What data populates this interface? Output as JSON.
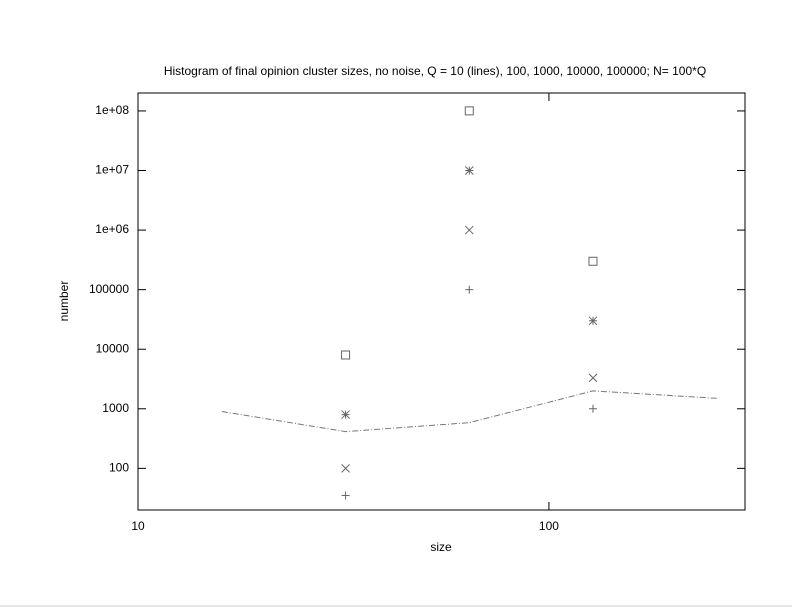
{
  "chart_data": {
    "type": "scatter",
    "title": "Histogram of final opinion cluster sizes, no noise, Q = 10 (lines), 100, 1000, 10000, 100000; N= 100*Q",
    "xlabel": "size",
    "ylabel": "number",
    "xlog": true,
    "ylog": true,
    "xlim": [
      10,
      300
    ],
    "ylim": [
      20,
      200000000
    ],
    "xticks": [
      10,
      100
    ],
    "yticks": [
      100,
      1000,
      10000,
      100000,
      {
        "value": 1000000,
        "label": "1e+06"
      },
      {
        "value": 10000000,
        "label": "1e+07"
      },
      {
        "value": 100000000,
        "label": "1e+08"
      }
    ],
    "series": [
      {
        "style": "line",
        "color": "#777777",
        "x": [
          16,
          32,
          64,
          128,
          256
        ],
        "values": [
          900,
          414,
          585,
          2000,
          1500
        ]
      },
      {
        "style": "points",
        "marker": "plus",
        "color": "#666666",
        "x": [
          32,
          64,
          128
        ],
        "values": [
          35,
          100000,
          1000
        ]
      },
      {
        "style": "points",
        "marker": "cross",
        "color": "#666666",
        "x": [
          32,
          64,
          128
        ],
        "values": [
          100,
          1000000,
          3300
        ]
      },
      {
        "style": "points",
        "marker": "star",
        "color": "#666666",
        "x": [
          32,
          64,
          128
        ],
        "values": [
          800,
          10000000,
          30000
        ]
      },
      {
        "style": "points",
        "marker": "square",
        "color": "#666666",
        "x": [
          32,
          64,
          128
        ],
        "values": [
          8000,
          100000000,
          300000
        ]
      }
    ]
  }
}
